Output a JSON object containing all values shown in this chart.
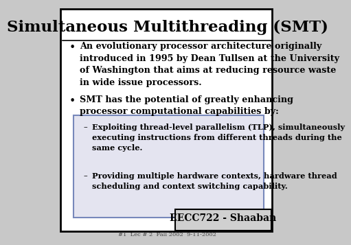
{
  "title": "Simultaneous Multithreading (SMT)",
  "bg_color": "#c8c8c8",
  "slide_bg": "#ffffff",
  "border_color": "#000000",
  "bullet1": "An evolutionary processor architecture originally\nintroduced in 1995 by Dean Tullsen at the University\nof Washington that aims at reducing resource waste\nin wide issue processors.",
  "bullet2": "SMT has the potential of greatly enhancing\nprocessor computational capabilities by:",
  "sub1": "Exploiting thread-level parallelism (TLP), simultaneously\nexecuting instructions from different threads during the\nsame cycle.",
  "sub2": "Providing multiple hardware contexts, hardware thread\nscheduling and context switching capability.",
  "footer_main": "EECC722 - Shaaban",
  "footer_sub": "#1  Lec # 2  Fall 2002  9-11-2002",
  "title_fontsize": 16.5,
  "body_fontsize": 9.2,
  "sub_fontsize": 8.2,
  "footer_fontsize": 10,
  "footer_sub_fontsize": 6
}
